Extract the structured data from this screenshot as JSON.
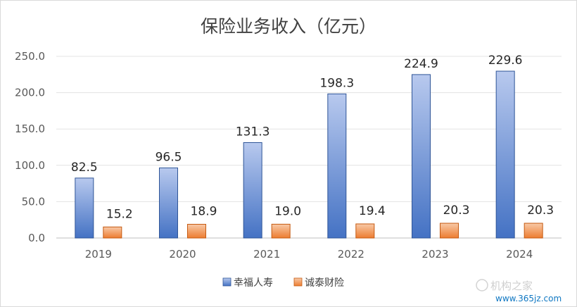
{
  "chart_data": {
    "type": "bar",
    "title": "保险业务收入（亿元）",
    "categories": [
      "2019",
      "2020",
      "2021",
      "2022",
      "2023",
      "2024"
    ],
    "series": [
      {
        "name": "幸福人寿",
        "values": [
          82.5,
          96.5,
          131.3,
          198.3,
          224.9,
          229.6
        ],
        "labels": [
          "82.5",
          "96.5",
          "131.3",
          "198.3",
          "224.9",
          "229.6"
        ]
      },
      {
        "name": "诚泰财险",
        "values": [
          15.2,
          18.9,
          19.0,
          19.4,
          20.3,
          20.3
        ],
        "labels": [
          "15.2",
          "18.9",
          "19.0",
          "19.4",
          "20.3",
          "20.3"
        ]
      }
    ],
    "ylim": [
      0,
      250
    ],
    "yticks": [
      "0.0",
      "50.0",
      "100.0",
      "150.0",
      "200.0",
      "250.0"
    ],
    "grid": true,
    "legend_position": "bottom",
    "colors": {
      "series1_top": "#b8c9ee",
      "series1_bottom": "#4472c4",
      "series1_stroke": "#2f5597",
      "series2_top": "#f8c9a7",
      "series2_bottom": "#ed7d31",
      "series2_stroke": "#c55a11"
    }
  },
  "watermark": {
    "text": "机构之家",
    "url": "www.365jz.com"
  }
}
